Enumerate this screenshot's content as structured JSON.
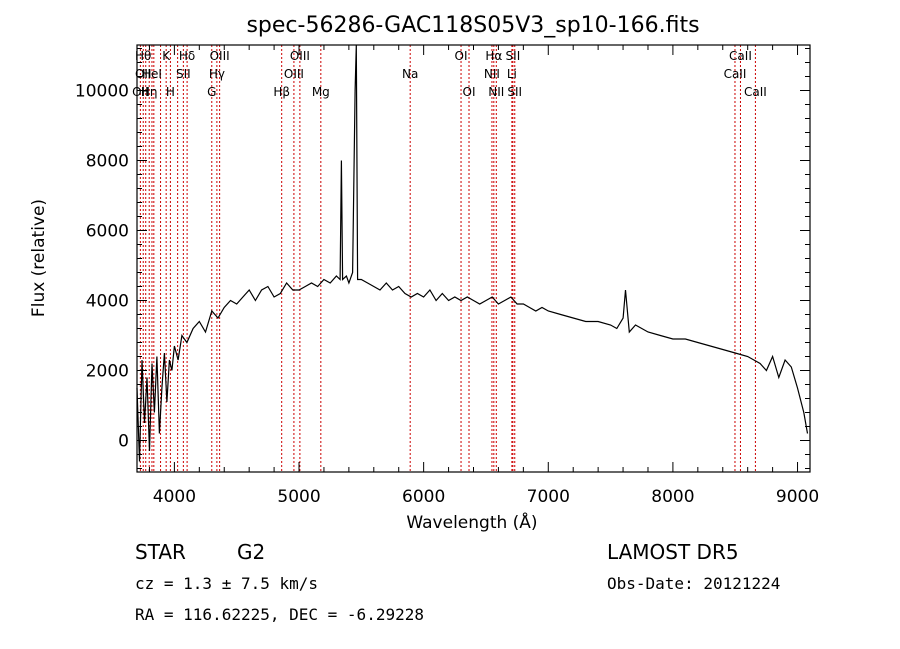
{
  "chart_data": {
    "type": "line",
    "title": "spec-56286-GAC118S05V3_sp10-166.fits",
    "xlabel": "Wavelength (Å)",
    "ylabel": "Flux (relative)",
    "xlim": [
      3700,
      9100
    ],
    "ylim": [
      -900,
      11300
    ],
    "x_ticks": [
      4000,
      5000,
      6000,
      7000,
      8000,
      9000
    ],
    "y_ticks": [
      0,
      2000,
      4000,
      6000,
      8000,
      10000
    ],
    "series": [
      {
        "x": [
          3700,
          3720,
          3740,
          3760,
          3780,
          3800,
          3820,
          3840,
          3860,
          3880,
          3900,
          3920,
          3940,
          3960,
          3980,
          4000,
          4030,
          4060,
          4100,
          4150,
          4200,
          4250,
          4300,
          4350,
          4400,
          4450,
          4500,
          4550,
          4600,
          4650,
          4700,
          4750,
          4800,
          4850,
          4900,
          4950,
          5000,
          5050,
          5100,
          5150,
          5200,
          5250,
          5300,
          5330,
          5340,
          5350,
          5380,
          5400,
          5430,
          5450,
          5460,
          5470,
          5500,
          5550,
          5600,
          5650,
          5700,
          5750,
          5800,
          5850,
          5900,
          5950,
          6000,
          6050,
          6100,
          6150,
          6200,
          6250,
          6300,
          6350,
          6400,
          6450,
          6500,
          6550,
          6600,
          6650,
          6700,
          6750,
          6800,
          6850,
          6900,
          6950,
          7000,
          7100,
          7200,
          7300,
          7400,
          7500,
          7550,
          7600,
          7620,
          7650,
          7700,
          7800,
          7900,
          8000,
          8100,
          8200,
          8300,
          8400,
          8500,
          8600,
          8650,
          8700,
          8750,
          8800,
          8850,
          8900,
          8950,
          9000,
          9050,
          9080
        ],
        "y": [
          1500,
          -600,
          2300,
          500,
          1800,
          -300,
          2200,
          800,
          2400,
          200,
          1500,
          2500,
          1100,
          2300,
          2000,
          2700,
          2300,
          3000,
          2800,
          3200,
          3400,
          3100,
          3700,
          3500,
          3800,
          4000,
          3900,
          4100,
          4300,
          4000,
          4300,
          4400,
          4100,
          4200,
          4500,
          4300,
          4300,
          4400,
          4500,
          4400,
          4600,
          4500,
          4700,
          4600,
          8000,
          4600,
          4700,
          4500,
          4800,
          10000,
          11300,
          4600,
          4600,
          4500,
          4400,
          4300,
          4500,
          4300,
          4400,
          4200,
          4100,
          4200,
          4100,
          4300,
          4000,
          4200,
          4000,
          4100,
          4000,
          4100,
          4000,
          3900,
          4000,
          4100,
          3900,
          4000,
          4100,
          3900,
          3900,
          3800,
          3700,
          3800,
          3700,
          3600,
          3500,
          3400,
          3400,
          3300,
          3200,
          3500,
          4300,
          3100,
          3300,
          3100,
          3000,
          2900,
          2900,
          2800,
          2700,
          2600,
          2500,
          2400,
          2300,
          2200,
          2000,
          2400,
          1800,
          2300,
          2100,
          1500,
          800,
          200
        ]
      }
    ],
    "line_markers": [
      {
        "wavelength": 3727,
        "labels": [
          "OII"
        ],
        "row": 2
      },
      {
        "wavelength": 3750,
        "labels": [
          "Hθ",
          "OII"
        ],
        "row": 0
      },
      {
        "wavelength": 3770,
        "labels": [],
        "row": 0
      },
      {
        "wavelength": 3798,
        "labels": [
          "Hη"
        ],
        "row": 2
      },
      {
        "wavelength": 3820,
        "labels": [
          "HeI"
        ],
        "row": 1
      },
      {
        "wavelength": 3835,
        "labels": [],
        "row": 0
      },
      {
        "wavelength": 3889,
        "labels": [],
        "row": 0
      },
      {
        "wavelength": 3934,
        "labels": [
          "K"
        ],
        "row": 0
      },
      {
        "wavelength": 3968,
        "labels": [
          "H"
        ],
        "row": 2
      },
      {
        "wavelength": 4026,
        "labels": [],
        "row": 0
      },
      {
        "wavelength": 4072,
        "labels": [
          "SII"
        ],
        "row": 1
      },
      {
        "wavelength": 4102,
        "labels": [
          "Hδ"
        ],
        "row": 0
      },
      {
        "wavelength": 4300,
        "labels": [
          "G"
        ],
        "row": 2
      },
      {
        "wavelength": 4341,
        "labels": [
          "Hγ"
        ],
        "row": 1
      },
      {
        "wavelength": 4363,
        "labels": [
          "OIII"
        ],
        "row": 0
      },
      {
        "wavelength": 4861,
        "labels": [
          "Hβ"
        ],
        "row": 2
      },
      {
        "wavelength": 4959,
        "labels": [
          "OIII"
        ],
        "row": 1
      },
      {
        "wavelength": 5007,
        "labels": [
          "OIII"
        ],
        "row": 0
      },
      {
        "wavelength": 5175,
        "labels": [
          "Mg"
        ],
        "row": 2
      },
      {
        "wavelength": 5892,
        "labels": [
          "Na"
        ],
        "row": 1
      },
      {
        "wavelength": 6300,
        "labels": [
          "OI"
        ],
        "row": 0
      },
      {
        "wavelength": 6364,
        "labels": [
          "OI"
        ],
        "row": 2
      },
      {
        "wavelength": 6548,
        "labels": [
          "NII"
        ],
        "row": 1
      },
      {
        "wavelength": 6563,
        "labels": [
          "Hα"
        ],
        "row": 0
      },
      {
        "wavelength": 6583,
        "labels": [
          "NII"
        ],
        "row": 2
      },
      {
        "wavelength": 6708,
        "labels": [
          "Li"
        ],
        "row": 1
      },
      {
        "wavelength": 6716,
        "labels": [
          "SII"
        ],
        "row": 0
      },
      {
        "wavelength": 6731,
        "labels": [
          "SII"
        ],
        "row": 2
      },
      {
        "wavelength": 8498,
        "labels": [
          "CaII"
        ],
        "row": 1
      },
      {
        "wavelength": 8542,
        "labels": [
          "CaII"
        ],
        "row": 0
      },
      {
        "wavelength": 8662,
        "labels": [
          "CaII"
        ],
        "row": 2
      }
    ],
    "colors": {
      "spectrum": "#000000",
      "markers": "#cc0000"
    },
    "grid": false,
    "legend": "none"
  },
  "footer": {
    "object_class": "STAR",
    "subclass": "G2",
    "cz_text": "cz = 1.3 ± 7.5 km/s",
    "survey": "LAMOST DR5",
    "obs_date": "Obs-Date: 20121224",
    "coords": "RA = 116.62225, DEC = -6.29228"
  }
}
